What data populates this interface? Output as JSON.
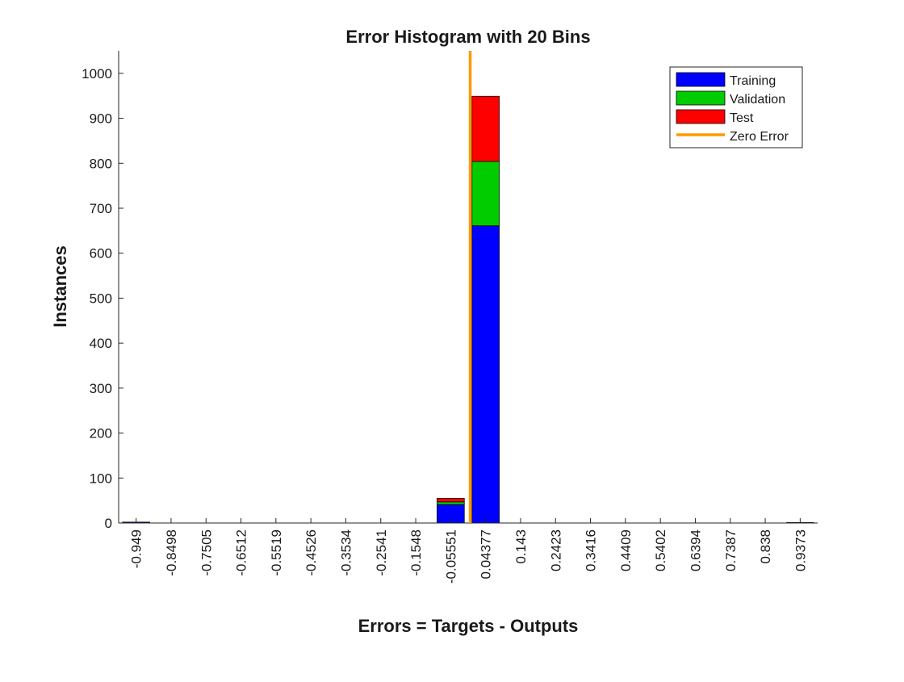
{
  "chart_data": {
    "type": "bar",
    "title": "Error Histogram with 20 Bins",
    "xlabel": "Errors = Targets - Outputs",
    "ylabel": "Instances",
    "categories": [
      "-0.949",
      "-0.8498",
      "-0.7505",
      "-0.6512",
      "-0.5519",
      "-0.4526",
      "-0.3534",
      "-0.2541",
      "-0.1548",
      "-0.05551",
      "0.04377",
      "0.143",
      "0.2423",
      "0.3416",
      "0.4409",
      "0.5402",
      "0.6394",
      "0.7387",
      "0.838",
      "0.9373"
    ],
    "stacked": true,
    "series": [
      {
        "name": "Training",
        "color": "#0000ff",
        "values": [
          2,
          0,
          0,
          0,
          0,
          0,
          0,
          0,
          0,
          41,
          661,
          0,
          0,
          0,
          0,
          0,
          0,
          0,
          0,
          1
        ]
      },
      {
        "name": "Validation",
        "color": "#00cc00",
        "values": [
          0,
          0,
          0,
          0,
          0,
          0,
          0,
          0,
          0,
          6,
          143,
          0,
          0,
          0,
          0,
          0,
          0,
          0,
          0,
          0
        ]
      },
      {
        "name": "Test",
        "color": "#ff0000",
        "values": [
          0,
          0,
          0,
          0,
          0,
          0,
          0,
          0,
          0,
          8,
          145,
          0,
          0,
          0,
          0,
          0,
          0,
          0,
          0,
          0
        ]
      }
    ],
    "reference_line": {
      "name": "Zero Error",
      "x": 0,
      "color": "#ff9900"
    },
    "ylim": [
      0,
      1050
    ],
    "yticks": [
      0,
      100,
      200,
      300,
      400,
      500,
      600,
      700,
      800,
      900,
      1000
    ],
    "grid": false,
    "legend_position": "top-right"
  }
}
